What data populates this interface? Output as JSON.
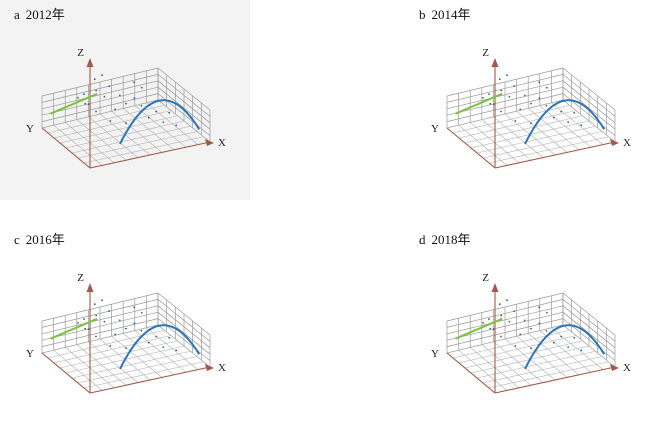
{
  "chart_data": [
    {
      "type": "scatter",
      "title_letter": "a",
      "title_year": "2012年",
      "axes": {
        "x": "X",
        "y": "Y",
        "z": "Z"
      },
      "series": [
        {
          "kind": "linear-trend",
          "color": "#7dc242",
          "from": [
            0.05,
            0.55
          ],
          "to": [
            0.45,
            0.95
          ]
        },
        {
          "kind": "quadratic-trend",
          "color": "#2e75b6",
          "x_range": [
            0.15,
            0.6
          ],
          "peak": 0.7
        }
      ]
    },
    {
      "type": "scatter",
      "title_letter": "b",
      "title_year": "2014年",
      "axes": {
        "x": "X",
        "y": "Y",
        "z": "Z"
      },
      "series": [
        {
          "kind": "linear-trend",
          "color": "#7dc242",
          "from": [
            0.05,
            0.55
          ],
          "to": [
            0.45,
            0.95
          ]
        },
        {
          "kind": "quadratic-trend",
          "color": "#2e75b6",
          "x_range": [
            0.15,
            0.6
          ],
          "peak": 0.7
        }
      ]
    },
    {
      "type": "scatter",
      "title_letter": "c",
      "title_year": "2016年",
      "axes": {
        "x": "X",
        "y": "Y",
        "z": "Z"
      },
      "series": [
        {
          "kind": "linear-trend",
          "color": "#7dc242",
          "from": [
            0.05,
            0.55
          ],
          "to": [
            0.45,
            0.95
          ]
        },
        {
          "kind": "quadratic-trend",
          "color": "#2e75b6",
          "x_range": [
            0.15,
            0.6
          ],
          "peak": 0.7
        }
      ]
    },
    {
      "type": "scatter",
      "title_letter": "d",
      "title_year": "2018年",
      "axes": {
        "x": "X",
        "y": "Y",
        "z": "Z"
      },
      "series": [
        {
          "kind": "linear-trend",
          "color": "#7dc242",
          "from": [
            0.05,
            0.55
          ],
          "to": [
            0.45,
            0.95
          ]
        },
        {
          "kind": "quadratic-trend",
          "color": "#2e75b6",
          "x_range": [
            0.15,
            0.6
          ],
          "peak": 0.7
        }
      ]
    }
  ]
}
